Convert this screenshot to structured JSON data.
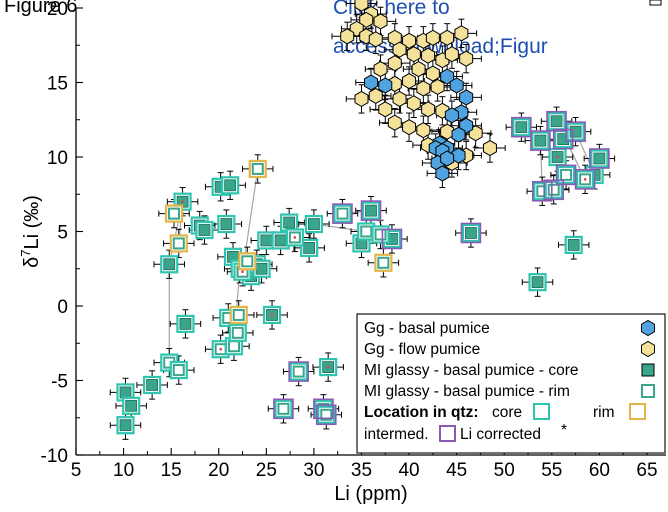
{
  "header": {
    "figure_label": "Figure 6",
    "link_line1": "Click here to",
    "link_line2": "access/download;Figur"
  },
  "colors": {
    "gg_basal": "#4fa3e0",
    "gg_flow": "#f5e29a",
    "mi_fill": "#3aa58a",
    "mi_core_border": "#2ec4b0",
    "mi_rim_border": "#e2b64a",
    "mi_intermed_border": "#8a5bb5",
    "li_corrected_dot": "#e0404a"
  },
  "chart_data": {
    "type": "scatter",
    "xlabel": "Li (ppm)",
    "ylabel": "δ7Li (‰)",
    "xlim": [
      5,
      67
    ],
    "ylim": [
      -10,
      20
    ],
    "xticks": [
      5,
      10,
      15,
      20,
      25,
      30,
      35,
      40,
      45,
      50,
      55,
      60,
      65
    ],
    "yticks": [
      -10,
      -5,
      0,
      5,
      10,
      15,
      20
    ],
    "error_bars": true,
    "legend_position": "bottom-right",
    "legend": {
      "gg_basal": "Gg - basal pumice",
      "gg_flow": "Gg - flow pumice",
      "mi_core": "MI glassy - basal pumice - core",
      "mi_rim": "MI glassy - basal pumice - rim",
      "location_bold": "Location in qtz:",
      "core": "core",
      "rim": "rim",
      "intermed": "intermed.",
      "li_corrected": "Li corrected",
      "asterisk": "*"
    },
    "series": [
      {
        "name": "Gg - basal pumice",
        "marker": "hexagon",
        "points": [
          [
            36,
            15
          ],
          [
            37.5,
            14.8
          ],
          [
            44,
            15.4
          ],
          [
            45,
            14.8
          ],
          [
            46,
            14
          ],
          [
            45.5,
            13
          ],
          [
            46,
            12.1
          ],
          [
            45.2,
            11.5
          ],
          [
            44.5,
            12.8
          ],
          [
            43.2,
            10.9
          ],
          [
            42.8,
            10.6
          ],
          [
            44,
            10.6
          ],
          [
            45.2,
            10.1
          ],
          [
            43.5,
            10.4
          ],
          [
            43,
            9.6
          ],
          [
            44,
            9.9
          ],
          [
            43.5,
            8.9
          ]
        ]
      },
      {
        "name": "Gg - flow pumice",
        "marker": "hexagon",
        "points": [
          [
            35,
            20.3
          ],
          [
            36,
            19.6
          ],
          [
            35.5,
            19.2
          ],
          [
            37,
            19.1
          ],
          [
            34.5,
            18.6
          ],
          [
            33.5,
            18.1
          ],
          [
            35.5,
            18.1
          ],
          [
            36.5,
            17.9
          ],
          [
            38.5,
            18
          ],
          [
            40,
            17.8
          ],
          [
            41.5,
            17.8
          ],
          [
            42.5,
            18
          ],
          [
            44,
            18
          ],
          [
            45.5,
            18.3
          ],
          [
            39,
            17.2
          ],
          [
            40.5,
            16.9
          ],
          [
            42,
            16.8
          ],
          [
            43.5,
            16.5
          ],
          [
            44.5,
            16.9
          ],
          [
            46,
            16.6
          ],
          [
            38.5,
            16.3
          ],
          [
            37,
            15.9
          ],
          [
            41,
            15.9
          ],
          [
            42.5,
            15.6
          ],
          [
            40,
            15.1
          ],
          [
            38.5,
            14.9
          ],
          [
            41.5,
            14.6
          ],
          [
            43,
            14.7
          ],
          [
            36.5,
            14.1
          ],
          [
            35,
            13.9
          ],
          [
            39,
            13.9
          ],
          [
            40.5,
            13.6
          ],
          [
            42,
            13.2
          ],
          [
            37.5,
            13.2
          ],
          [
            43.5,
            13.1
          ],
          [
            38.5,
            12.3
          ],
          [
            40,
            12
          ],
          [
            41.5,
            11.8
          ],
          [
            47,
            11.6
          ],
          [
            44,
            11.7
          ],
          [
            42,
            10.8
          ],
          [
            48.5,
            10.6
          ],
          [
            46,
            10.1
          ],
          [
            44.5,
            9.6
          ]
        ]
      },
      {
        "name": "MI glassy - basal pumice - core",
        "marker": "square",
        "points": [
          [
            10.2,
            -5.8
          ],
          [
            10.2,
            -8
          ],
          [
            10.8,
            -6.7
          ],
          [
            13,
            -5.3
          ],
          [
            14.8,
            2.8
          ],
          [
            16.2,
            7
          ],
          [
            16.5,
            -1.2
          ],
          [
            18,
            5.4
          ],
          [
            18.5,
            5.1
          ],
          [
            20.2,
            8
          ],
          [
            20.8,
            5.5
          ],
          [
            21.2,
            8.1
          ],
          [
            21.5,
            3.3
          ],
          [
            22.2,
            2.5
          ],
          [
            23.4,
            2
          ],
          [
            24,
            2.8
          ],
          [
            24.5,
            2.5
          ],
          [
            25,
            4.4
          ],
          [
            25.6,
            -0.6
          ],
          [
            27.4,
            5.6
          ],
          [
            26.5,
            4.4
          ],
          [
            29.5,
            3.9
          ],
          [
            30,
            5.5
          ],
          [
            31.5,
            -4.1
          ],
          [
            35,
            4.2
          ],
          [
            36,
            6.4
          ],
          [
            38.2,
            4.5
          ],
          [
            46.5,
            4.9
          ],
          [
            51.8,
            12
          ],
          [
            53.5,
            1.6
          ],
          [
            53.8,
            11.1
          ],
          [
            55.5,
            12.4
          ],
          [
            55.6,
            10
          ],
          [
            56.2,
            11.2
          ],
          [
            57.5,
            11.7
          ],
          [
            57.3,
            4.1
          ],
          [
            59.5,
            8.8
          ],
          [
            60,
            9.9
          ]
        ]
      },
      {
        "name": "MI glassy - basal pumice - rim",
        "marker": "square-hollow",
        "points": [
          [
            14.8,
            -3.8
          ],
          [
            15.8,
            -4.3
          ],
          [
            20.2,
            -2.9
          ],
          [
            21,
            -0.8
          ],
          [
            21.6,
            -2.7
          ],
          [
            22,
            -1.8
          ],
          [
            22.5,
            2.3
          ],
          [
            26.8,
            -6.9
          ],
          [
            28,
            4.6
          ],
          [
            28.4,
            -4.4
          ],
          [
            31,
            -6.9
          ],
          [
            31.3,
            -7.3
          ],
          [
            33,
            6.2
          ],
          [
            35.5,
            5
          ],
          [
            37,
            4.8
          ],
          [
            54,
            7.7
          ],
          [
            55.2,
            7.8
          ],
          [
            56.5,
            8.8
          ],
          [
            58.5,
            8.5
          ]
        ]
      },
      {
        "name": "Rim (location)",
        "marker": "square-gold",
        "points": [
          [
            15.3,
            6.2
          ],
          [
            15.8,
            4.2
          ],
          [
            22.1,
            -0.6
          ],
          [
            23,
            3
          ],
          [
            24.1,
            9.2
          ],
          [
            37.3,
            2.9
          ]
        ]
      }
    ]
  }
}
